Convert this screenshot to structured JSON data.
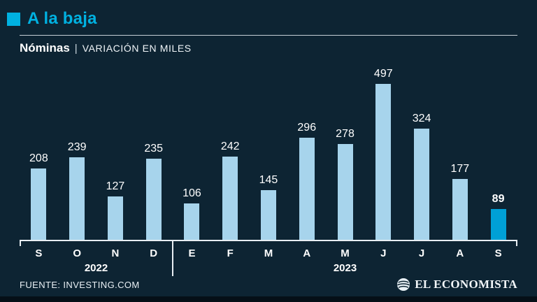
{
  "header": {
    "title": "A la baja",
    "series": "Nóminas",
    "separator": "|",
    "units": "VARIACIÓN EN MILES"
  },
  "chart_data": {
    "type": "bar",
    "title": "A la baja",
    "subtitle": "Nóminas | Variación en miles",
    "categories": [
      "S",
      "O",
      "N",
      "D",
      "E",
      "F",
      "M",
      "A",
      "M",
      "J",
      "J",
      "A",
      "S"
    ],
    "values": [
      208,
      239,
      127,
      235,
      106,
      242,
      145,
      296,
      278,
      497,
      324,
      177,
      89
    ],
    "year_groups": [
      {
        "label": "2022",
        "start_index": 0,
        "end_index": 3
      },
      {
        "label": "2023",
        "start_index": 4,
        "end_index": 12
      }
    ],
    "highlight_index": 12,
    "xlabel": "",
    "ylabel": "Variación en miles",
    "ylim": [
      0,
      500
    ],
    "grid": false,
    "legend": false,
    "bar_color": "#a7d4ec",
    "highlight_color": "#00a0d6"
  },
  "footer": {
    "source": "FUENTE: INVESTING.COM",
    "brand": "EL ECONOMISTA"
  },
  "colors": {
    "background": "#0d2433",
    "accent_cyan": "#00b1e1",
    "axis": "#e8eef3",
    "text": "#ffffff"
  }
}
